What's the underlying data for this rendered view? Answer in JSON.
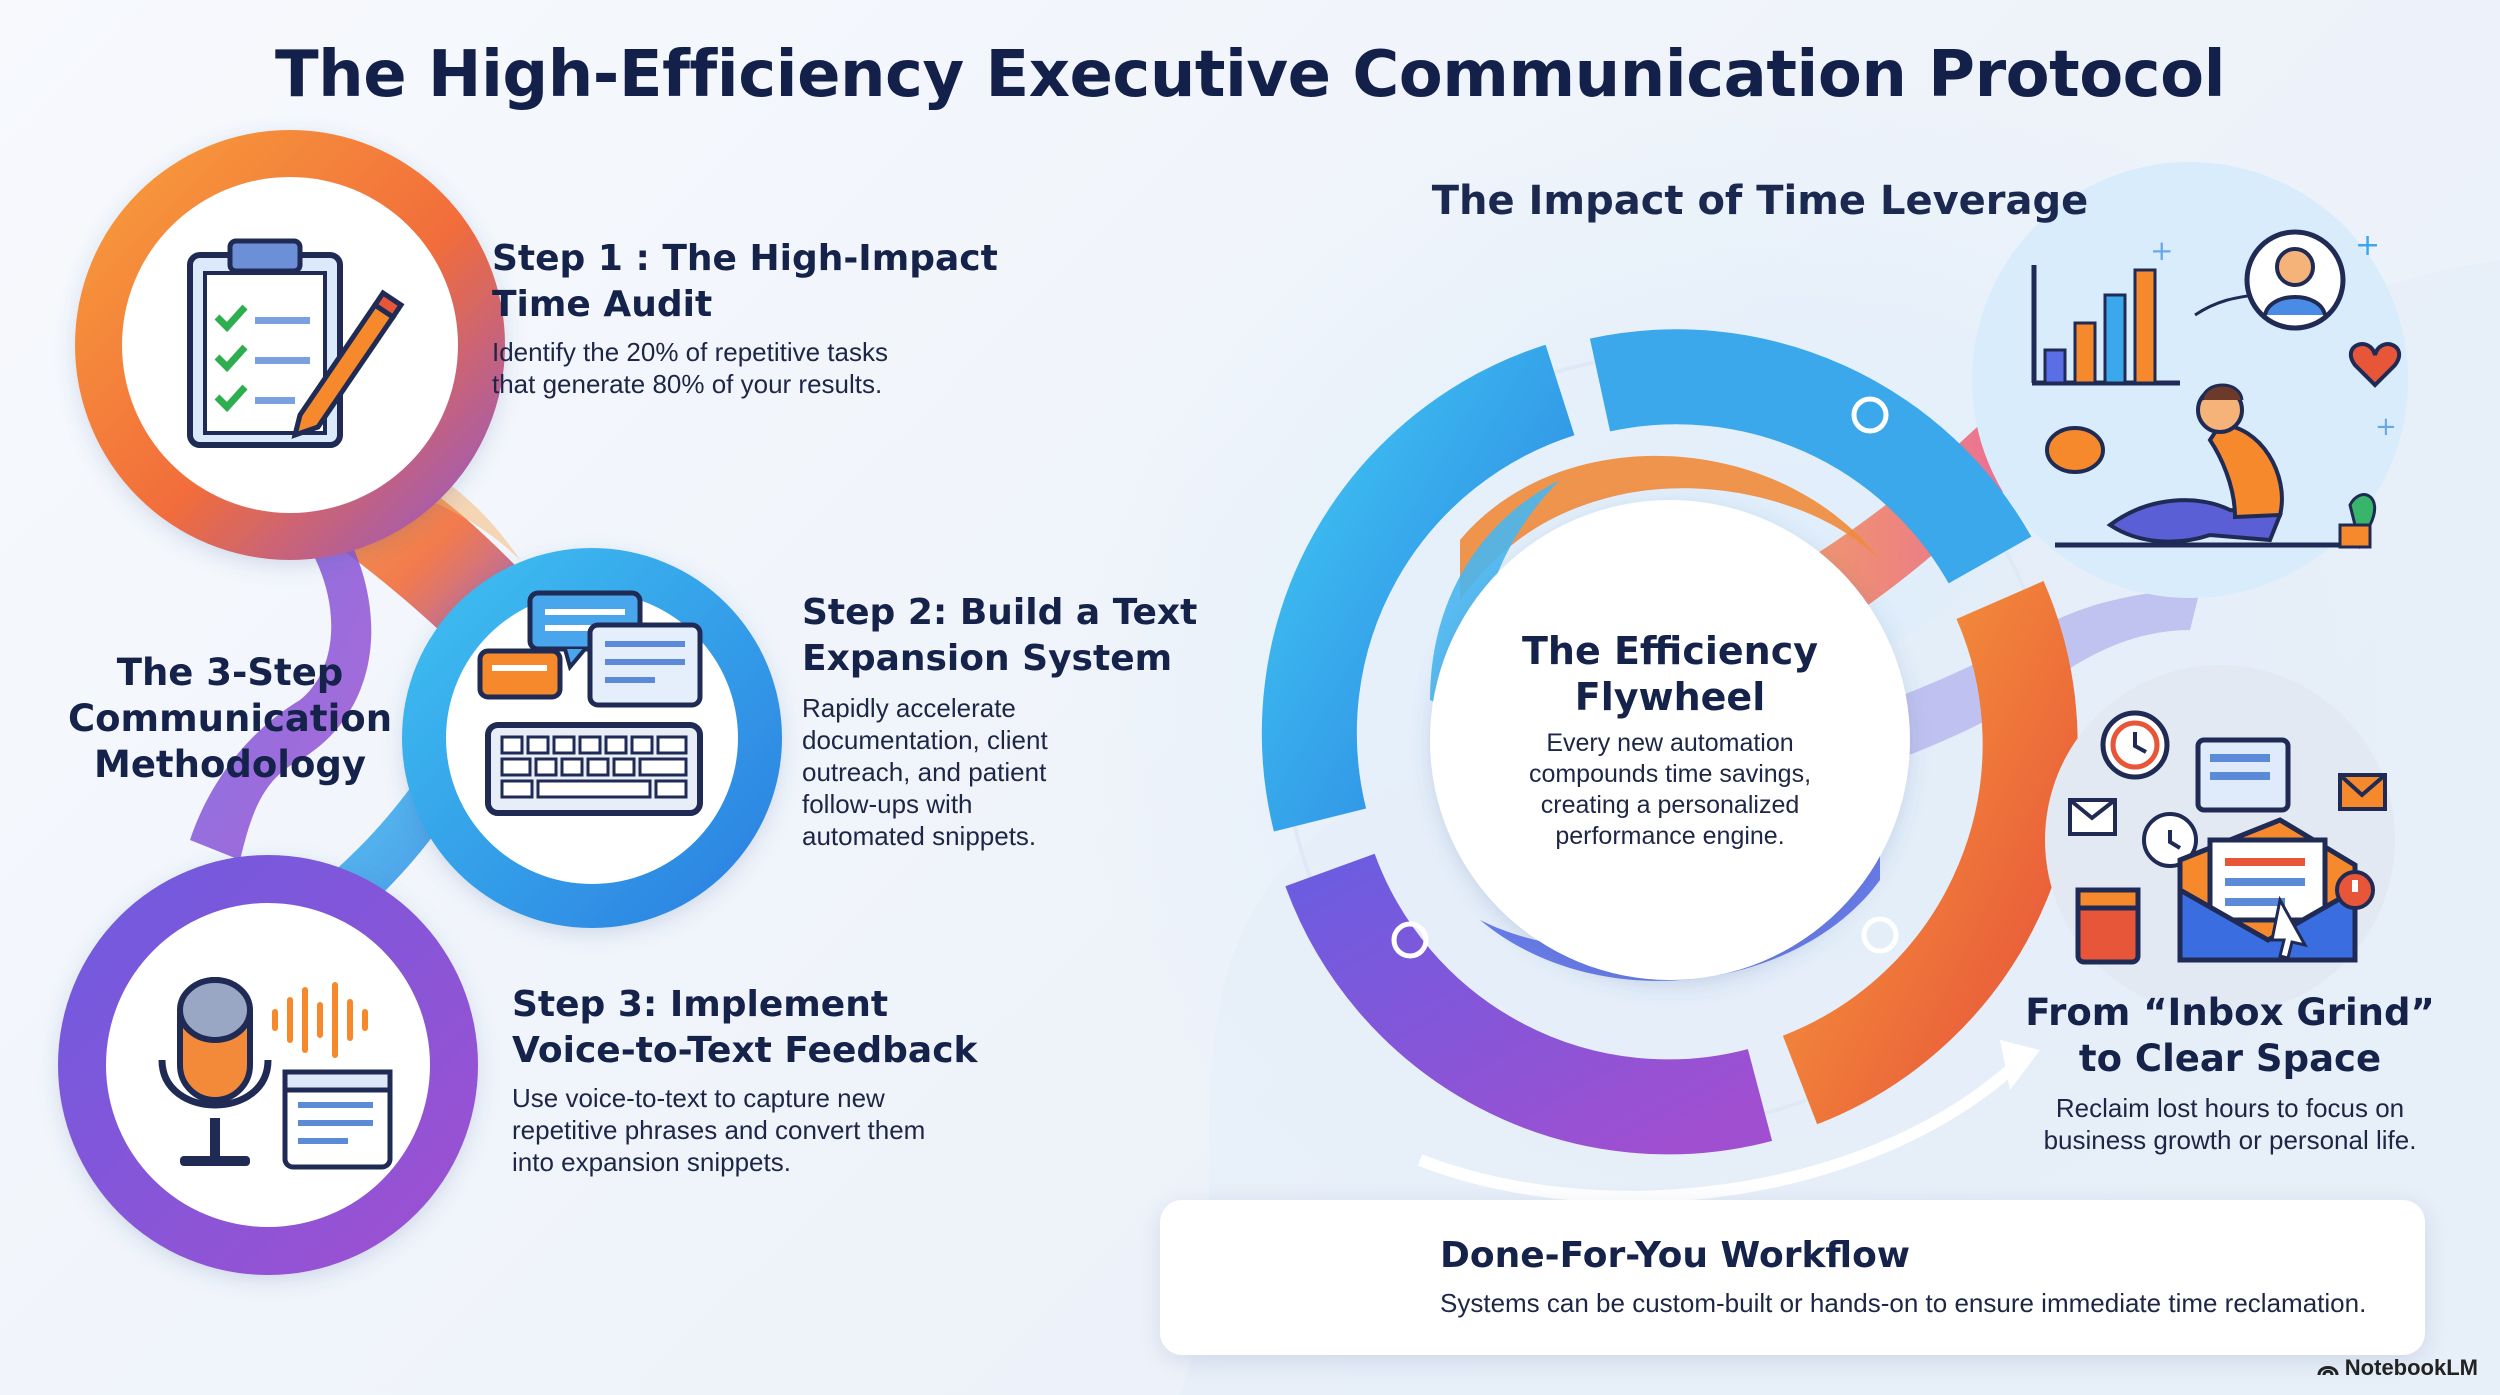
{
  "title": "The High-Efficiency Executive Communication Protocol",
  "methodology": {
    "title_lines": [
      "The 3-Step",
      "Communication",
      "Methodology"
    ],
    "steps": [
      {
        "heading_lines": [
          "Step 1 : The High-Impact",
          "Time Audit"
        ],
        "body_lines": [
          "Identify the 20% of repetitive tasks",
          "that generate 80% of your results."
        ],
        "icon": "clipboard-checklist-icon"
      },
      {
        "heading_lines": [
          "Step 2: Build a Text",
          "Expansion System"
        ],
        "body_lines": [
          "Rapidly accelerate",
          "documentation, client",
          "outreach, and patient",
          "follow-ups with",
          "automated snippets."
        ],
        "icon": "keyboard-chat-icon"
      },
      {
        "heading_lines": [
          "Step 3: Implement",
          "Voice-to-Text Feedback"
        ],
        "body_lines": [
          "Use voice-to-text to capture new",
          "repetitive phrases and convert them",
          "into expansion snippets."
        ],
        "icon": "microphone-icon"
      }
    ]
  },
  "impact": {
    "title": "The Impact of Time Leverage",
    "flywheel": {
      "title_lines": [
        "The Efficiency",
        "Flywheel"
      ],
      "body_lines": [
        "Every new automation",
        "compounds time savings,",
        "creating a personalized",
        "performance engine."
      ]
    },
    "inbox": {
      "title_lines": [
        "From “Inbox Grind”",
        "to Clear Space"
      ],
      "body_lines": [
        "Reclaim lost hours to focus on",
        "business growth or personal life."
      ]
    }
  },
  "card": {
    "title": "Done-For-You Workflow",
    "body": "Systems can be custom-built or hands-on to ensure immediate time reclamation."
  },
  "brand": "NotebookLM",
  "colors": {
    "navy": "#15224a",
    "orange": "#f5892b",
    "blue": "#2aa6e8",
    "purple": "#7b4fd1"
  }
}
